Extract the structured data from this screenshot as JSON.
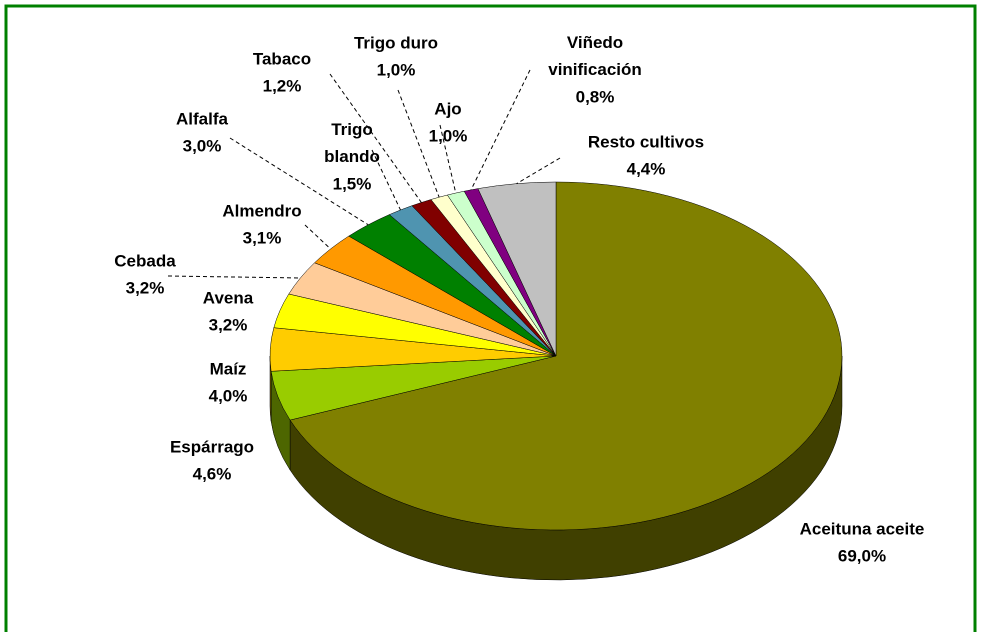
{
  "chart_data": {
    "type": "pie",
    "categories": [
      "Aceituna aceite",
      "Espárrago",
      "Maíz",
      "Avena",
      "Cebada",
      "Almendro",
      "Alfalfa",
      "Trigo blando",
      "Tabaco",
      "Trigo duro",
      "Ajo",
      "Viñedo vinificación",
      "Resto cultivos"
    ],
    "values": [
      69.0,
      4.6,
      4.0,
      3.2,
      3.2,
      3.1,
      3.0,
      1.5,
      1.2,
      1.0,
      1.0,
      0.8,
      4.4
    ],
    "value_labels": [
      "69,0%",
      "4,6%",
      "4,0%",
      "3,2%",
      "3,2%",
      "3,1%",
      "3,0%",
      "1,5%",
      "1,2%",
      "1,0%",
      "1,0%",
      "0,8%",
      "4,4%"
    ],
    "colors": [
      "#808000",
      "#99cc00",
      "#ffcc00",
      "#ffff00",
      "#ffcc99",
      "#ff9900",
      "#008000",
      "#4f94b0",
      "#800000",
      "#ffffcc",
      "#ccffcc",
      "#800080",
      "#c0c0c0"
    ]
  }
}
